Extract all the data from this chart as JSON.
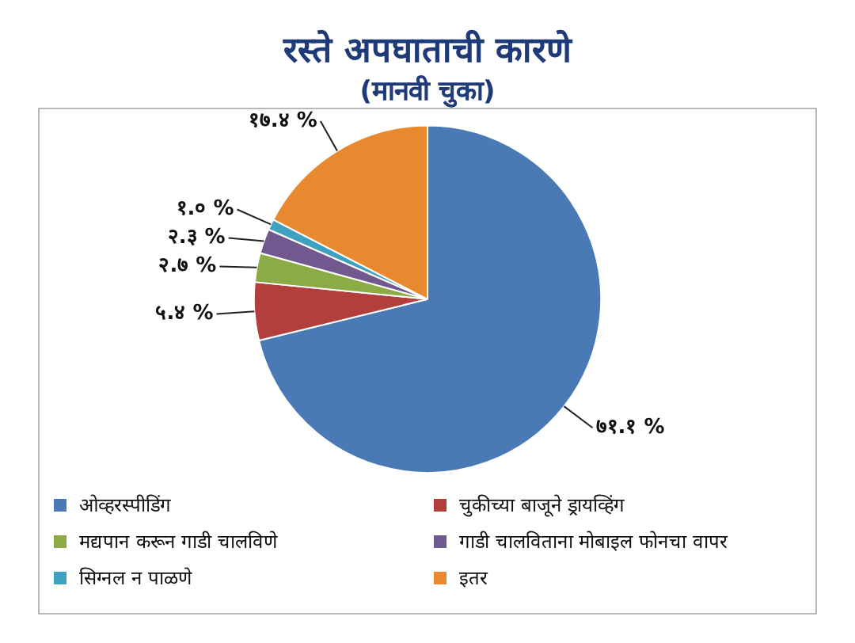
{
  "chart_data": {
    "type": "pie",
    "title": "रस्ते अपघाताची कारणे",
    "subtitle": "(मानवी चुका)",
    "categories": [
      "ओव्हरस्पीडिंग",
      "चुकीच्या बाजूने ड्रायव्हिंग",
      "मद्यपान करून गाडी चालविणे",
      "गाडी चालविताना मोबाइल फोनचा वापर",
      "सिग्नल न पाळणे",
      "इतर"
    ],
    "values": [
      71.1,
      5.4,
      2.7,
      2.3,
      1.0,
      17.4
    ],
    "value_labels": [
      "७१.१ %",
      "५.४ %",
      "२.७ %",
      "२.३ %",
      "१.० %",
      "१७.४ %"
    ],
    "colors": [
      "#4a7ab5",
      "#b33f3c",
      "#8aab45",
      "#71588f",
      "#3fa1bf",
      "#e8892f"
    ],
    "legend": "bottom"
  }
}
